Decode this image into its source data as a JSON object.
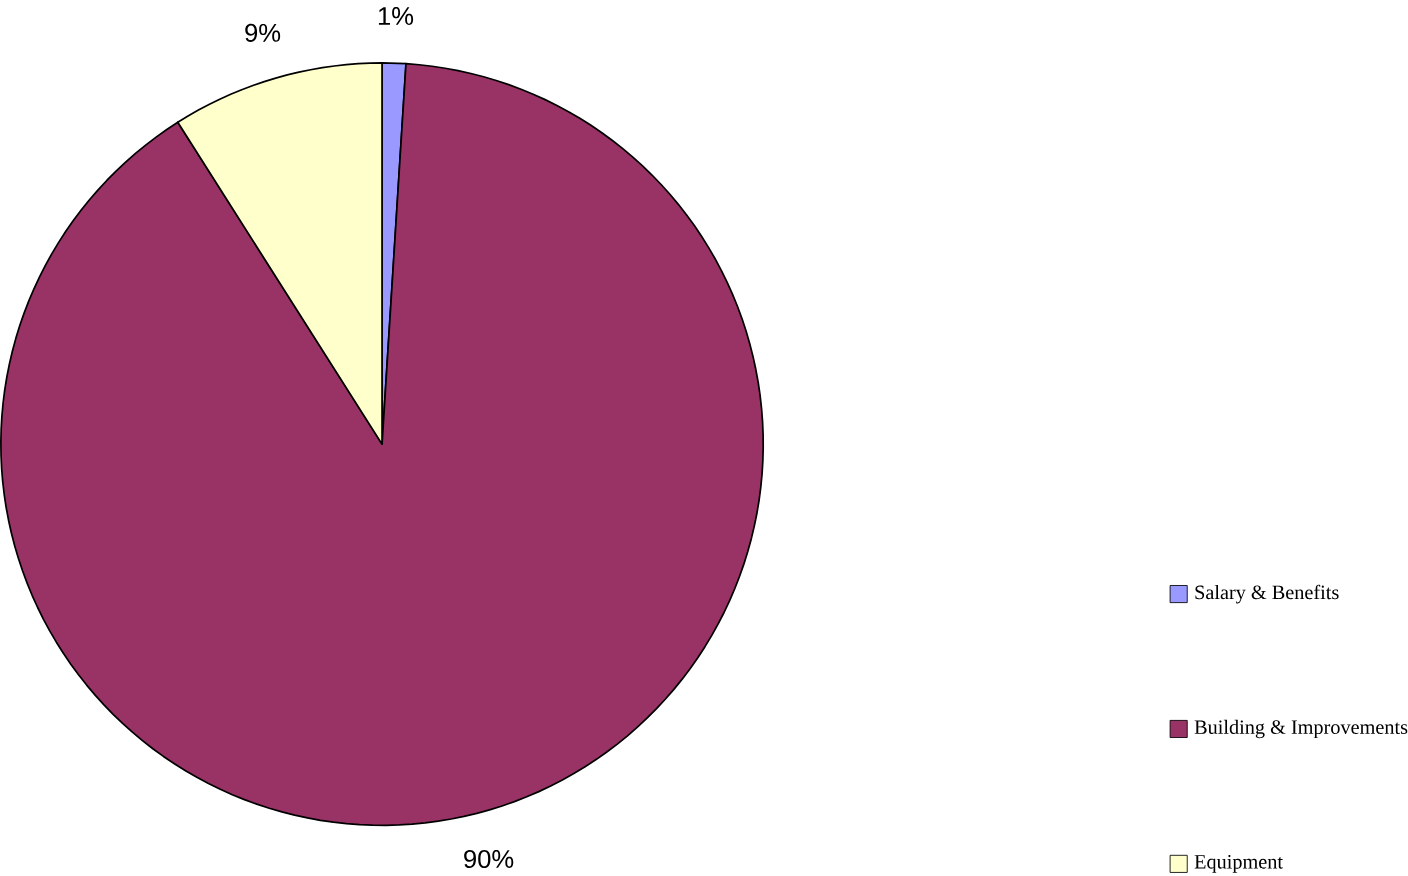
{
  "chart_data": {
    "type": "pie",
    "categories": [
      "Salary & Benefits",
      "Building & Improvements",
      "Equipment"
    ],
    "values": [
      1,
      90,
      9
    ],
    "colors": [
      "#9999ff",
      "#993366",
      "#ffffcc"
    ],
    "value_labels": [
      "1%",
      "90%",
      "9%"
    ],
    "legend": "right"
  }
}
